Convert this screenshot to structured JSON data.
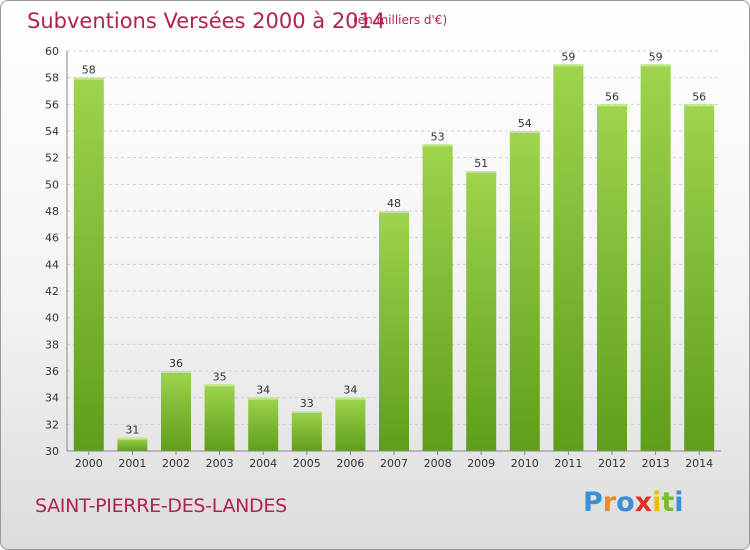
{
  "chart_data": {
    "type": "bar",
    "title": "Subventions Versées 2000 à 2014",
    "subtitle": "(en milliers d'€)",
    "categories": [
      "2000",
      "2001",
      "2002",
      "2003",
      "2004",
      "2005",
      "2006",
      "2007",
      "2008",
      "2009",
      "2010",
      "2011",
      "2012",
      "2013",
      "2014"
    ],
    "values": [
      58,
      31,
      36,
      35,
      34,
      33,
      34,
      48,
      53,
      51,
      54,
      59,
      56,
      59,
      56
    ],
    "ylim": [
      30,
      60
    ],
    "yticks": [
      30,
      32,
      34,
      36,
      38,
      40,
      42,
      44,
      46,
      48,
      50,
      52,
      54,
      56,
      58,
      60
    ],
    "grid": true,
    "bar_color": "#8cc63f",
    "bar_color_dark": "#5f9e1a"
  },
  "footer": {
    "place": "SAINT-PIERRE-DES-LANDES",
    "logo": [
      "P",
      "r",
      "o",
      "x",
      "i",
      "t",
      "i"
    ]
  },
  "colors": {
    "title": "#b0234a",
    "logo": [
      "#3a8fd6",
      "#f08a1e",
      "#3a8fd6",
      "#e0302a",
      "#f5b800",
      "#7bbd2a",
      "#3a8fd6"
    ]
  }
}
